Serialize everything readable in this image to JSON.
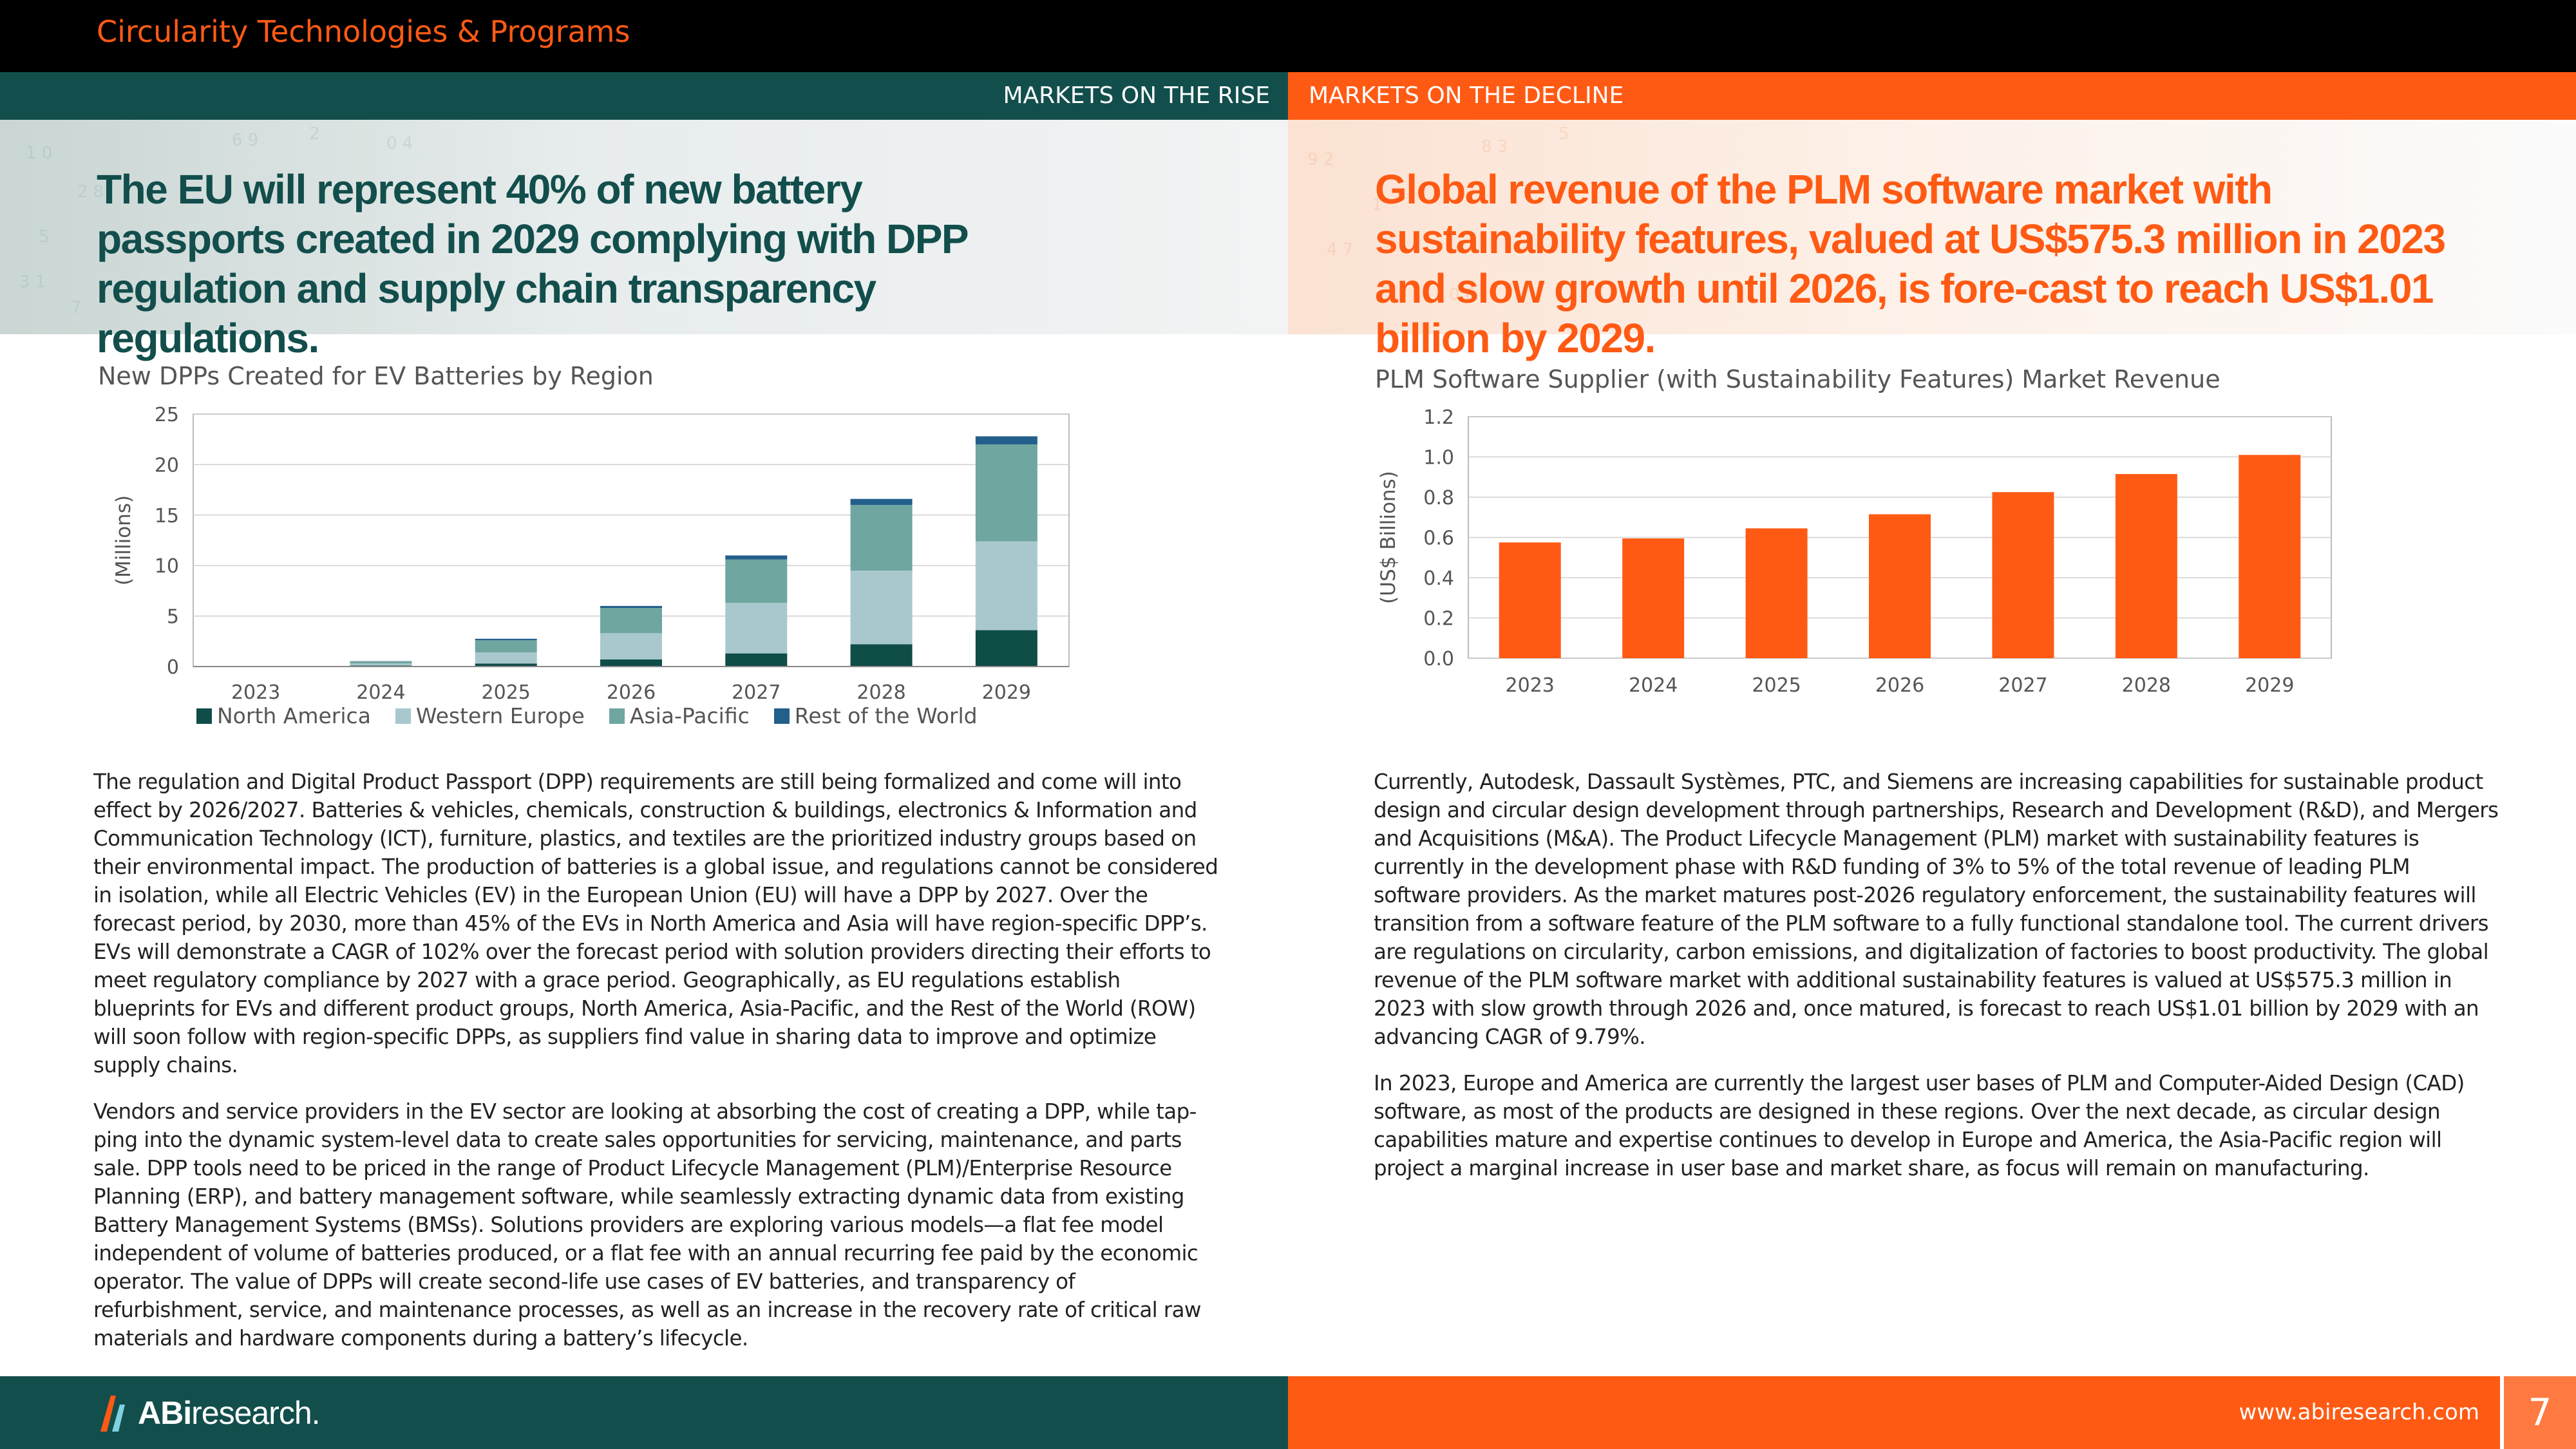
{
  "header": {
    "title": "Circularity Technologies & Programs"
  },
  "subbar": {
    "left": "MARKETS ON THE RISE",
    "right": "MARKETS ON THE DECLINE"
  },
  "hero": {
    "left": "The EU will represent 40% of new battery passports created in 2029 complying with DPP regulation and supply chain transparency regulations.",
    "right": "Global revenue of the PLM software market with sustainability features, valued at US$575.3 million in 2023 and slow growth until 2026, is fore-cast to reach US$1.01 billion by 2029."
  },
  "chart_data": [
    {
      "type": "bar",
      "stacked": true,
      "title": "New DPPs Created for EV Batteries by Region",
      "xlabel": "",
      "ylabel": "(Millions)",
      "ylim": [
        0,
        25
      ],
      "yticks": [
        "0",
        "5",
        "10",
        "15",
        "20",
        "25"
      ],
      "categories": [
        "2023",
        "2024",
        "2025",
        "2026",
        "2027",
        "2028",
        "2029"
      ],
      "series": [
        {
          "name": "North America",
          "color": "#0f4d47",
          "values": [
            0,
            0.1,
            0.3,
            0.7,
            1.3,
            2.2,
            3.6
          ]
        },
        {
          "name": "Western Europe",
          "color": "#a9c8cd",
          "values": [
            0,
            0.2,
            1.1,
            2.6,
            5.0,
            7.3,
            8.8
          ]
        },
        {
          "name": "Asia-Pacific",
          "color": "#6fa6a0",
          "values": [
            0,
            0.2,
            1.2,
            2.5,
            4.3,
            6.5,
            9.6
          ]
        },
        {
          "name": "Rest of the World",
          "color": "#235f8b",
          "values": [
            0,
            0.03,
            0.15,
            0.2,
            0.4,
            0.6,
            0.8
          ]
        }
      ],
      "legend": "bottom"
    },
    {
      "type": "bar",
      "title": "PLM Software Supplier (with Sustainability Features) Market Revenue",
      "xlabel": "",
      "ylabel": "(US$ Billions)",
      "ylim": [
        0,
        1.2
      ],
      "yticks": [
        "0.0",
        "0.2",
        "0.4",
        "0.6",
        "0.8",
        "1.0",
        "1.2"
      ],
      "categories": [
        "2023",
        "2024",
        "2025",
        "2026",
        "2027",
        "2028",
        "2029"
      ],
      "values": [
        0.575,
        0.595,
        0.645,
        0.715,
        0.825,
        0.915,
        1.01
      ],
      "color": "#ff5a14"
    }
  ],
  "left_text": [
    "The regulation and Digital Product Passport (DPP) requirements are still being formalized and come will into effect by 2026/2027. Batteries & vehicles, chemicals, construction & buildings, electronics & Information and Communication Technology (ICT), furniture, plastics, and textiles are the prioritized industry groups based on their environmental impact. The production of batteries is a global issue, and regulations cannot be considered in isolation, while all Electric Vehicles (EV) in the European Union (EU) will have a DPP by 2027. Over the forecast period, by 2030, more than 45% of the EVs in North America and Asia will have region-specific DPP’s. EVs will demonstrate a CAGR of 102% over the forecast period with solution providers directing their efforts to meet regulatory compliance by 2027 with a grace period. Geographically, as EU regulations establish blueprints for EVs and different product groups, North America, Asia-Pacific, and the Rest of the World (ROW) will soon follow with region-specific DPPs, as suppliers find value in sharing data to improve and optimize supply chains.",
    "Vendors and service providers in the EV sector are looking at absorbing the cost of creating a DPP, while tap-ping into the dynamic system-level data to create sales opportunities for servicing, maintenance, and parts sale. DPP tools need to be priced in the range of Product Lifecycle Management (PLM)/Enterprise Resource Planning (ERP), and battery management software, while seamlessly extracting dynamic data from existing Battery Management Systems (BMSs). Solutions providers are exploring various models—a flat fee model independent of volume of batteries produced, or a flat fee with an annual recurring fee paid by the economic operator. The value of DPPs will create second-life use cases of EV batteries, and transparency of refurbishment, service, and maintenance processes, as well as an increase in the recovery rate of critical raw materials and hardware components during a battery’s lifecycle."
  ],
  "right_text": [
    "Currently, Autodesk, Dassault Systèmes, PTC, and Siemens are increasing capabilities for sustainable product design and circular design development through partnerships, Research and Development (R&D), and Mergers and Acquisitions (M&A). The Product Lifecycle Management (PLM) market with sustainability features is currently in the development phase with R&D funding of 3% to 5% of the total revenue of leading PLM software providers. As the market matures post-2026 regulatory enforcement, the sustainability features will transition from a software feature of the PLM software to a fully functional standalone tool. The current drivers are regulations on circularity, carbon emissions, and digitalization of factories to boost productivity. The global revenue of the PLM software market with additional sustainability features is valued at US$575.3 million in 2023 with slow growth through 2026 and, once matured, is forecast to reach US$1.01 billion by 2029 with an advancing CAGR of 9.79%.",
    "In 2023, Europe and America are currently the largest user bases of PLM and Computer-Aided Design (CAD) software, as most of the products are designed in these regions. Over the next decade, as circular design capabilities mature and expertise continues to develop in Europe and America, the Asia-Pacific region will project a marginal increase in user base and market share, as focus will remain on manufacturing."
  ],
  "footer": {
    "logo_bold": "ABi",
    "logo_rest": "research",
    "logo_mark": ".",
    "url": "www.abiresearch.com",
    "page": "7"
  },
  "icons": {
    "logo": "abi-logo-icon"
  },
  "colors": {
    "teal": "#124e4c",
    "orange": "#ff5a14",
    "black": "#000000"
  }
}
